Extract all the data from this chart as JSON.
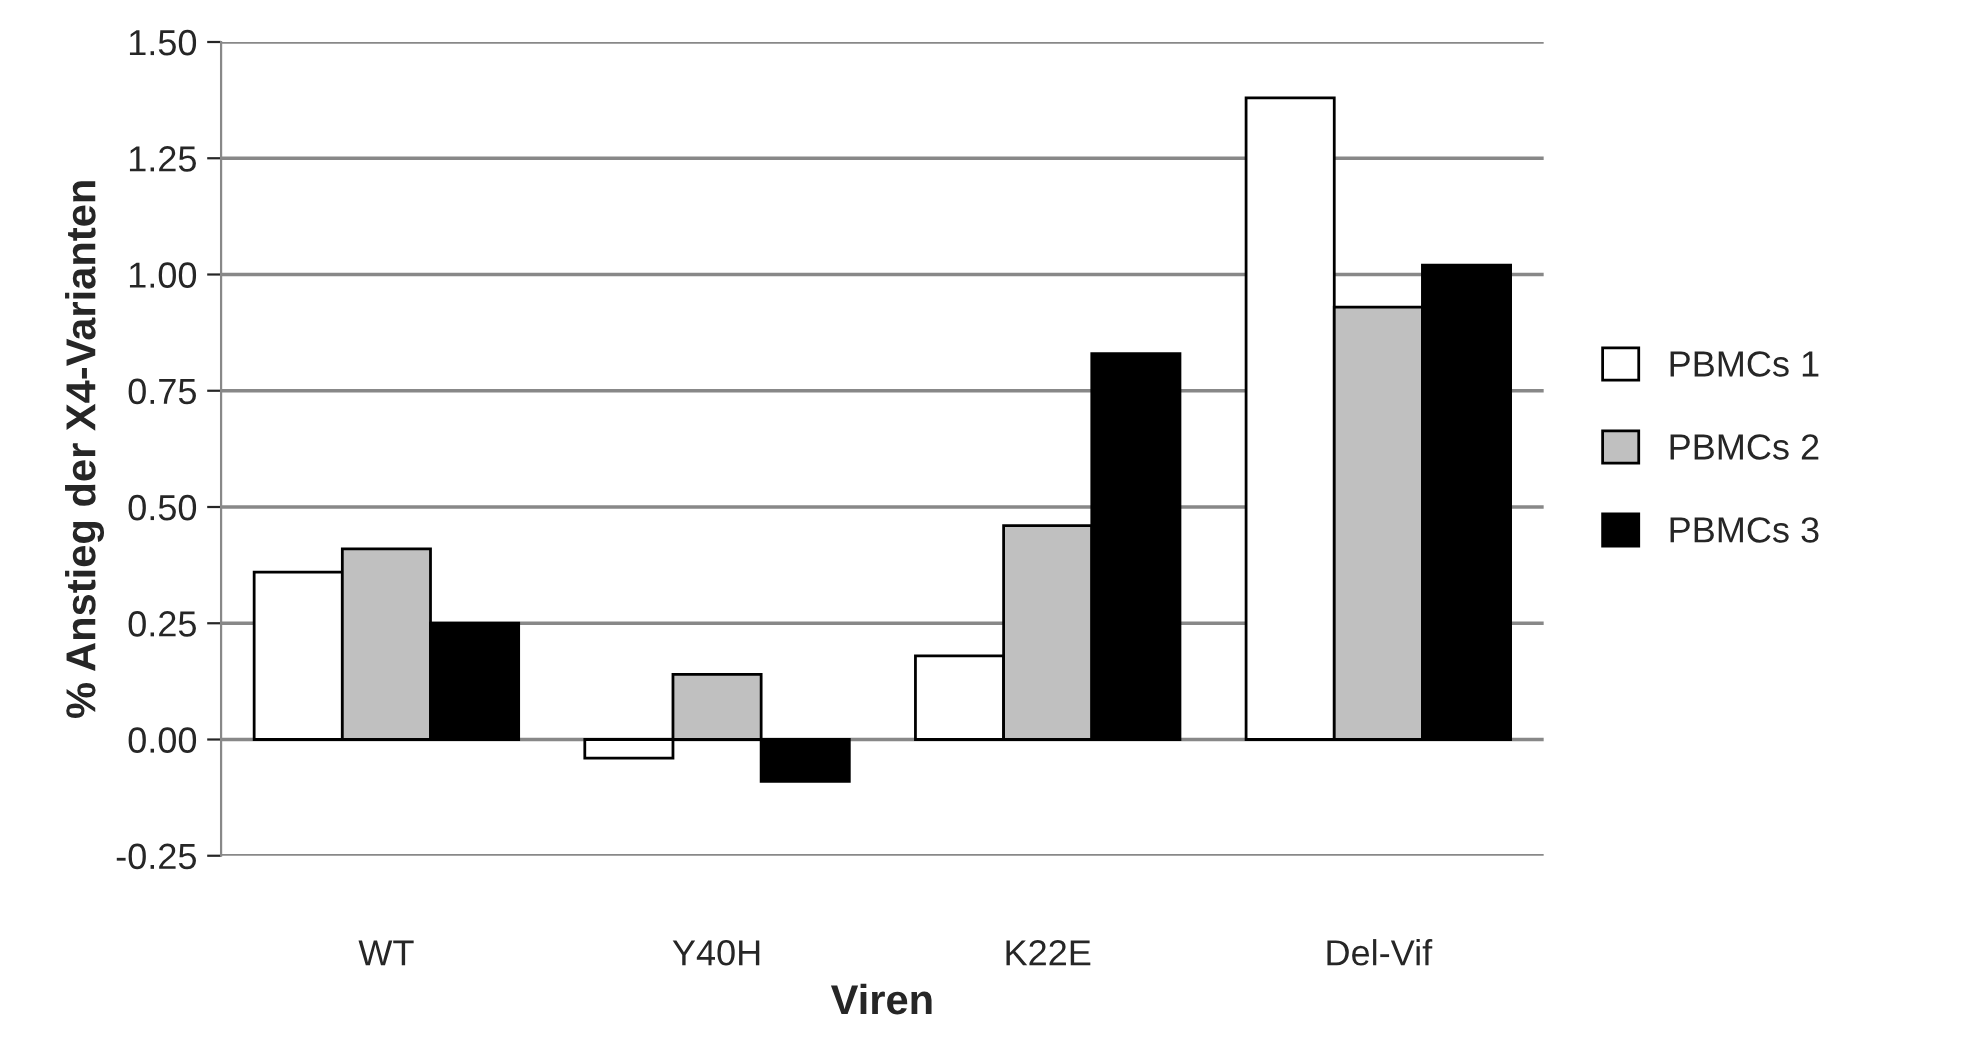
{
  "chart_data": {
    "type": "bar",
    "xlabel": "Viren",
    "ylabel": "% Anstieg der X4-Varianten",
    "categories": [
      "WT",
      "Y40H",
      "K22E",
      "Del-Vif"
    ],
    "series": [
      {
        "name": "PBMCs 1",
        "color": "#ffffff",
        "values": [
          0.36,
          -0.04,
          0.18,
          1.38
        ]
      },
      {
        "name": "PBMCs 2",
        "color": "#c0c0c0",
        "values": [
          0.41,
          0.14,
          0.46,
          0.93
        ]
      },
      {
        "name": "PBMCs 3",
        "color": "#000000",
        "values": [
          0.25,
          -0.09,
          0.83,
          1.02
        ]
      }
    ],
    "ylim": [
      -0.25,
      1.5
    ],
    "yticks": [
      {
        "value": -0.25,
        "label": "-0.25"
      },
      {
        "value": 0,
        "label": "0.00"
      },
      {
        "value": 0.25,
        "label": "0.25"
      },
      {
        "value": 0.5,
        "label": "0.50"
      },
      {
        "value": 0.75,
        "label": "0.75"
      },
      {
        "value": 1.0,
        "label": "1.00"
      },
      {
        "value": 1.25,
        "label": "1.25"
      },
      {
        "value": 1.5,
        "label": "1.50"
      }
    ],
    "grid": "y",
    "legend": "right"
  }
}
